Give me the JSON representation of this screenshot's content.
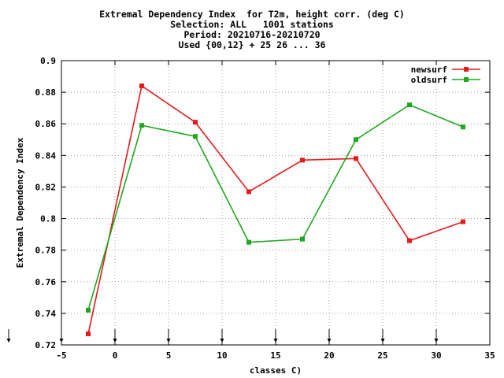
{
  "chart_data": {
    "type": "line",
    "title_lines": [
      "Extremal Dependency Index  for T2m, height corr. (deg C)",
      "Selection: ALL   1001 stations",
      "Period: 20210716-20210720",
      "Used {00,12} + 25 26 ... 36"
    ],
    "xlabel": "classes C)",
    "ylabel": "Extremal Dependency Index",
    "xlim": [
      -5,
      35
    ],
    "ylim": [
      0.72,
      0.9
    ],
    "xticks": [
      "-5",
      "0",
      "5",
      "10",
      "15",
      "20",
      "25",
      "30",
      "35"
    ],
    "yticks": [
      "0.72",
      "0.74",
      "0.76",
      "0.78",
      "0.8",
      "0.82",
      "0.84",
      "0.86",
      "0.88",
      "0.9"
    ],
    "grid": true,
    "legend_position": "top-right",
    "series": [
      {
        "name": "newsurf",
        "color": "#e41a1c",
        "x": [
          -2.5,
          2.5,
          7.5,
          12.5,
          17.5,
          22.5,
          27.5,
          32.5
        ],
        "values": [
          0.727,
          0.884,
          0.861,
          0.817,
          0.837,
          0.838,
          0.786,
          0.798
        ]
      },
      {
        "name": "oldsurf",
        "color": "#1fa81f",
        "x": [
          -2.5,
          2.5,
          7.5,
          12.5,
          17.5,
          22.5,
          27.5,
          32.5
        ],
        "values": [
          0.742,
          0.859,
          0.852,
          0.785,
          0.787,
          0.85,
          0.872,
          0.858
        ]
      }
    ],
    "markers_x": [
      -5,
      0,
      5,
      10,
      15,
      20,
      25,
      30
    ]
  }
}
